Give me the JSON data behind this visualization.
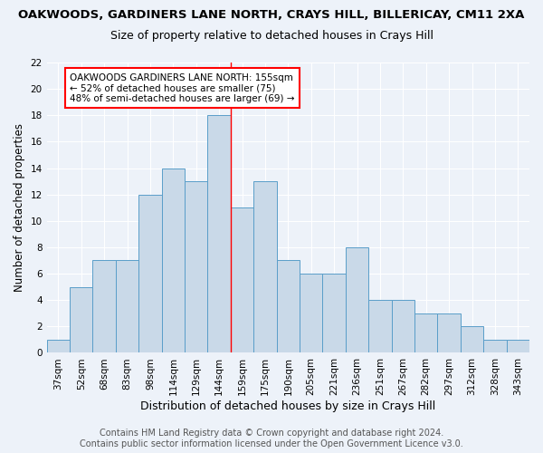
{
  "title1": "OAKWOODS, GARDINERS LANE NORTH, CRAYS HILL, BILLERICAY, CM11 2XA",
  "title2": "Size of property relative to detached houses in Crays Hill",
  "xlabel": "Distribution of detached houses by size in Crays Hill",
  "ylabel": "Number of detached properties",
  "categories": [
    "37sqm",
    "52sqm",
    "68sqm",
    "83sqm",
    "98sqm",
    "114sqm",
    "129sqm",
    "144sqm",
    "159sqm",
    "175sqm",
    "190sqm",
    "205sqm",
    "221sqm",
    "236sqm",
    "251sqm",
    "267sqm",
    "282sqm",
    "297sqm",
    "312sqm",
    "328sqm",
    "343sqm"
  ],
  "values": [
    1,
    5,
    7,
    7,
    12,
    14,
    13,
    18,
    11,
    13,
    7,
    6,
    6,
    8,
    4,
    4,
    3,
    3,
    2,
    1,
    1
  ],
  "bar_color": "#c9d9e8",
  "bar_edge_color": "#5a9ec9",
  "annotation_text": "OAKWOODS GARDINERS LANE NORTH: 155sqm\n← 52% of detached houses are smaller (75)\n48% of semi-detached houses are larger (69) →",
  "annotation_box_color": "white",
  "annotation_box_edge_color": "red",
  "red_line_bar_index": 8,
  "ylim": [
    0,
    22
  ],
  "yticks": [
    0,
    2,
    4,
    6,
    8,
    10,
    12,
    14,
    16,
    18,
    20,
    22
  ],
  "footer1": "Contains HM Land Registry data © Crown copyright and database right 2024.",
  "footer2": "Contains public sector information licensed under the Open Government Licence v3.0.",
  "bg_color": "#edf2f9",
  "plot_bg_color": "#edf2f9",
  "grid_color": "white",
  "title1_fontsize": 9.5,
  "title2_fontsize": 9,
  "xlabel_fontsize": 9,
  "ylabel_fontsize": 8.5,
  "tick_fontsize": 7.5,
  "annotation_fontsize": 7.5,
  "footer_fontsize": 7
}
